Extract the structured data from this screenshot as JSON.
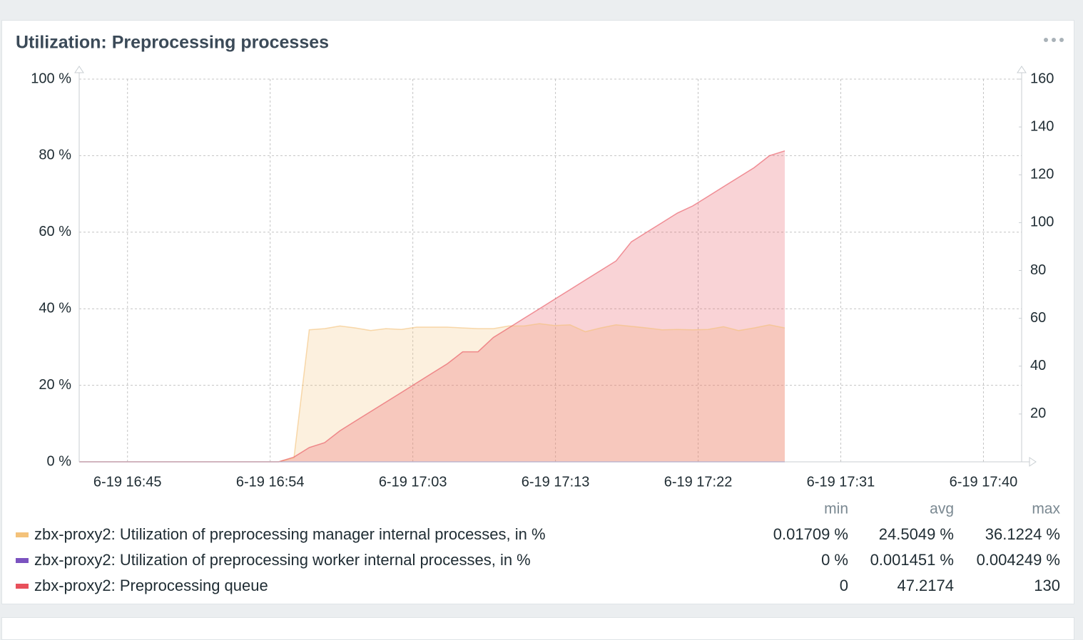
{
  "title": "Utilization: Preprocessing processes",
  "chart_data": {
    "type": "area",
    "x": [
      42,
      43,
      44,
      45,
      46,
      47,
      48,
      49,
      50,
      51,
      52,
      53,
      54,
      55,
      56,
      57,
      58,
      59,
      60,
      61,
      62,
      63,
      64,
      65,
      66,
      67,
      68,
      69,
      70,
      71,
      72,
      73,
      74,
      75,
      76,
      77,
      78,
      79,
      80,
      81,
      82,
      83,
      84,
      85,
      86,
      87,
      88
    ],
    "xlim": [
      42,
      103.44
    ],
    "xticks": [
      {
        "value": 45.15,
        "label": "6-19 16:45"
      },
      {
        "value": 54.45,
        "label": "6-19 16:54"
      },
      {
        "value": 63.75,
        "label": "6-19 17:03"
      },
      {
        "value": 73.05,
        "label": "6-19 17:13"
      },
      {
        "value": 82.35,
        "label": "6-19 17:22"
      },
      {
        "value": 91.65,
        "label": "6-19 17:31"
      },
      {
        "value": 100.95,
        "label": "6-19 17:40"
      }
    ],
    "ylim": [
      0,
      100
    ],
    "yticks": [
      {
        "value": 0,
        "label": "0 %"
      },
      {
        "value": 20,
        "label": "20 %"
      },
      {
        "value": 40,
        "label": "40 %"
      },
      {
        "value": 60,
        "label": "60 %"
      },
      {
        "value": 80,
        "label": "80 %"
      },
      {
        "value": 100,
        "label": "100 %"
      }
    ],
    "y2lim": [
      0,
      160
    ],
    "y2ticks": [
      20,
      40,
      60,
      80,
      100,
      120,
      140,
      160
    ],
    "grid": true,
    "series": [
      {
        "name": "zbx-proxy2: Utilization of preprocessing manager internal processes, in %",
        "color": "#f4c27a",
        "values": [
          0.02,
          0.02,
          0.02,
          0.02,
          0.02,
          0.02,
          0.02,
          0.02,
          0.02,
          0.02,
          0.02,
          0.02,
          0.02,
          0.02,
          1,
          34.5,
          34.8,
          35.5,
          35,
          34.3,
          34.8,
          34.6,
          35.2,
          35.2,
          35.2,
          35,
          34.8,
          34.8,
          35.5,
          35.5,
          36.1,
          35.6,
          35.8,
          34,
          35,
          35.8,
          35.4,
          35,
          34.5,
          34.6,
          34.5,
          34.6,
          35.3,
          34.3,
          35,
          35.8,
          35
        ]
      },
      {
        "name": "zbx-proxy2: Utilization of preprocessing worker internal processes, in %",
        "color": "#7b53c0",
        "values": [
          0,
          0,
          0,
          0,
          0,
          0,
          0,
          0,
          0,
          0,
          0,
          0,
          0,
          0,
          0,
          0,
          0,
          0,
          0,
          0,
          0,
          0,
          0,
          0,
          0,
          0,
          0,
          0,
          0,
          0,
          0,
          0,
          0,
          0,
          0,
          0,
          0,
          0,
          0,
          0,
          0,
          0,
          0,
          0,
          0,
          0,
          0
        ]
      },
      {
        "name": "zbx-proxy2: Preprocessing queue",
        "color": "#e8505b",
        "axis": "y2",
        "values": [
          0,
          0,
          0,
          0,
          0,
          0,
          0,
          0,
          0,
          0,
          0,
          0,
          0,
          0,
          2,
          6,
          8,
          13,
          17,
          21,
          25,
          29,
          33,
          37,
          41,
          46,
          46,
          52,
          56,
          60,
          64,
          68,
          72,
          76,
          80,
          84,
          92,
          96,
          100,
          104,
          107,
          111,
          115,
          119,
          123,
          128,
          130
        ]
      }
    ],
    "stat_headers": [
      "min",
      "avg",
      "max"
    ],
    "stats": [
      [
        "0.01709 %",
        "24.5049 %",
        "36.1224 %"
      ],
      [
        "0 %",
        "0.001451 %",
        "0.004249 %"
      ],
      [
        "0",
        "47.2174",
        "130"
      ]
    ]
  }
}
